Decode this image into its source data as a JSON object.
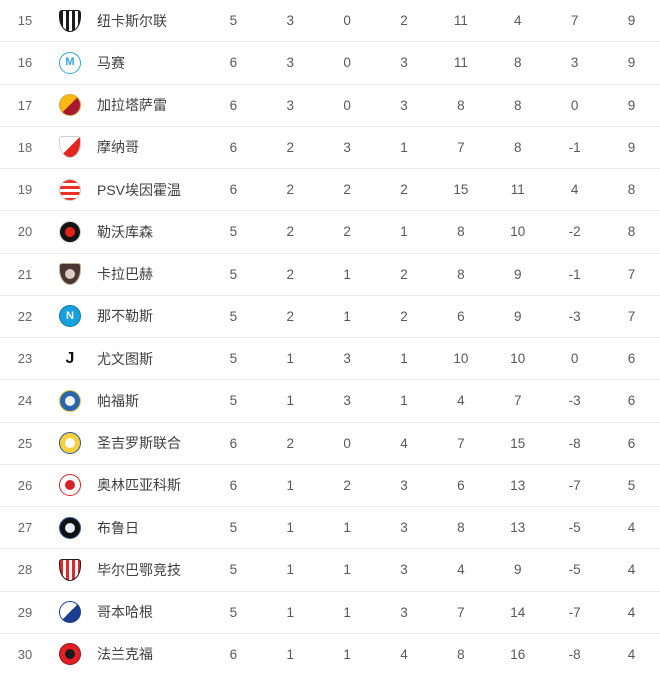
{
  "page": {
    "background": "#ffffff",
    "divider_color": "#ebebeb"
  },
  "table": {
    "rows": [
      {
        "rank": "15",
        "team": "纽卡斯尔联",
        "stats": [
          "5",
          "3",
          "0",
          "2",
          "11",
          "4",
          "7",
          "9"
        ],
        "badge": {
          "shape": "shield",
          "pattern": "vstripes",
          "bg": "#1c1c1c",
          "bg2": "#ffffff",
          "border": "#1c1c1c",
          "glyph": "",
          "glyph_color": "",
          "glyph_size": "",
          "inner": ""
        }
      },
      {
        "rank": "16",
        "team": "马赛",
        "stats": [
          "6",
          "3",
          "0",
          "3",
          "11",
          "8",
          "3",
          "9"
        ],
        "badge": {
          "shape": "circle",
          "pattern": "solid",
          "bg": "#ffffff",
          "bg2": "",
          "border": "#2fa8e0",
          "glyph": "M",
          "glyph_color": "#2fa8e0",
          "glyph_size": "11px",
          "inner": ""
        }
      },
      {
        "rank": "17",
        "team": "加拉塔萨雷",
        "stats": [
          "6",
          "3",
          "0",
          "3",
          "8",
          "8",
          "0",
          "9"
        ],
        "badge": {
          "shape": "circle",
          "pattern": "half-d",
          "bg": "#fcb813",
          "bg2": "#a6192e",
          "border": "#d9a43a",
          "glyph": "",
          "glyph_color": "",
          "glyph_size": "",
          "inner": ""
        }
      },
      {
        "rank": "18",
        "team": "摩纳哥",
        "stats": [
          "6",
          "2",
          "3",
          "1",
          "7",
          "8",
          "-1",
          "9"
        ],
        "badge": {
          "shape": "shield",
          "pattern": "half-d",
          "bg": "#ffffff",
          "bg2": "#e2261f",
          "border": "#cfcfcf",
          "glyph": "",
          "glyph_color": "",
          "glyph_size": "",
          "inner": ""
        }
      },
      {
        "rank": "19",
        "team": "PSV埃因霍温",
        "stats": [
          "6",
          "2",
          "2",
          "2",
          "15",
          "11",
          "4",
          "8"
        ],
        "badge": {
          "shape": "circle",
          "pattern": "hstripes",
          "bg": "#ee3124",
          "bg2": "#ffffff",
          "border": "#cdcdcd",
          "glyph": "",
          "glyph_color": "",
          "glyph_size": "",
          "inner": ""
        }
      },
      {
        "rank": "20",
        "team": "勒沃库森",
        "stats": [
          "5",
          "2",
          "2",
          "1",
          "8",
          "10",
          "-2",
          "8"
        ],
        "badge": {
          "shape": "circle",
          "pattern": "solid",
          "bg": "#141414",
          "bg2": "",
          "border": "#d7d7d7",
          "glyph": "",
          "glyph_color": "",
          "glyph_size": "",
          "inner": "#e3231b"
        }
      },
      {
        "rank": "21",
        "team": "卡拉巴赫",
        "stats": [
          "5",
          "2",
          "1",
          "2",
          "8",
          "9",
          "-1",
          "7"
        ],
        "badge": {
          "shape": "shield",
          "pattern": "solid",
          "bg": "#4a3632",
          "bg2": "",
          "border": "#bfae94",
          "glyph": "",
          "glyph_color": "",
          "glyph_size": "",
          "inner": "#d9cfc0"
        }
      },
      {
        "rank": "22",
        "team": "那不勒斯",
        "stats": [
          "5",
          "2",
          "1",
          "2",
          "6",
          "9",
          "-3",
          "7"
        ],
        "badge": {
          "shape": "circle",
          "pattern": "solid",
          "bg": "#16a0dc",
          "bg2": "",
          "border": "#1079a8",
          "glyph": "N",
          "glyph_color": "#ffffff",
          "glyph_size": "11px",
          "inner": ""
        }
      },
      {
        "rank": "23",
        "team": "尤文图斯",
        "stats": [
          "5",
          "1",
          "3",
          "1",
          "10",
          "10",
          "0",
          "6"
        ],
        "badge": {
          "shape": "circle",
          "pattern": "solid",
          "bg": "#ffffff",
          "bg2": "",
          "border": "#ffffff",
          "glyph": "J",
          "glyph_color": "#111111",
          "glyph_size": "16px",
          "inner": ""
        }
      },
      {
        "rank": "24",
        "team": "帕福斯",
        "stats": [
          "5",
          "1",
          "3",
          "1",
          "4",
          "7",
          "-3",
          "6"
        ],
        "badge": {
          "shape": "circle",
          "pattern": "solid",
          "bg": "#2a66ad",
          "bg2": "",
          "border": "#e8c83c",
          "glyph": "",
          "glyph_color": "",
          "glyph_size": "",
          "inner": "#f0f4f8"
        }
      },
      {
        "rank": "25",
        "team": "圣吉罗斯联合",
        "stats": [
          "6",
          "2",
          "0",
          "4",
          "7",
          "15",
          "-8",
          "6"
        ],
        "badge": {
          "shape": "circle",
          "pattern": "solid",
          "bg": "#f5d13f",
          "bg2": "",
          "border": "#27559c",
          "glyph": "",
          "glyph_color": "",
          "glyph_size": "",
          "inner": "#ffffff"
        }
      },
      {
        "rank": "26",
        "team": "奥林匹亚科斯",
        "stats": [
          "6",
          "1",
          "2",
          "3",
          "6",
          "13",
          "-7",
          "5"
        ],
        "badge": {
          "shape": "circle",
          "pattern": "solid",
          "bg": "#ffffff",
          "bg2": "",
          "border": "#d6222a",
          "glyph": "",
          "glyph_color": "",
          "glyph_size": "",
          "inner": "#d6222a"
        }
      },
      {
        "rank": "27",
        "team": "布鲁日",
        "stats": [
          "5",
          "1",
          "1",
          "3",
          "8",
          "13",
          "-5",
          "4"
        ],
        "badge": {
          "shape": "circle",
          "pattern": "solid",
          "bg": "#101010",
          "bg2": "",
          "border": "#2b56a4",
          "glyph": "",
          "glyph_color": "",
          "glyph_size": "",
          "inner": "#e8eefc"
        }
      },
      {
        "rank": "28",
        "team": "毕尔巴鄂竞技",
        "stats": [
          "5",
          "1",
          "1",
          "3",
          "4",
          "9",
          "-5",
          "4"
        ],
        "badge": {
          "shape": "shield",
          "pattern": "vstripes",
          "bg": "#e02a2a",
          "bg2": "#ffffff",
          "border": "#1c1c1c",
          "glyph": "",
          "glyph_color": "",
          "glyph_size": "",
          "inner": ""
        }
      },
      {
        "rank": "29",
        "team": "哥本哈根",
        "stats": [
          "5",
          "1",
          "1",
          "3",
          "7",
          "14",
          "-7",
          "4"
        ],
        "badge": {
          "shape": "circle",
          "pattern": "half-d",
          "bg": "#ffffff",
          "bg2": "#1d3e8f",
          "border": "#1d3e8f",
          "glyph": "",
          "glyph_color": "",
          "glyph_size": "",
          "inner": ""
        }
      },
      {
        "rank": "30",
        "team": "法兰克福",
        "stats": [
          "6",
          "1",
          "1",
          "4",
          "8",
          "16",
          "-8",
          "4"
        ],
        "badge": {
          "shape": "circle",
          "pattern": "solid",
          "bg": "#e31e24",
          "bg2": "",
          "border": "#8f1418",
          "glyph": "",
          "glyph_color": "",
          "glyph_size": "",
          "inner": "#1a1a1a"
        }
      }
    ]
  }
}
